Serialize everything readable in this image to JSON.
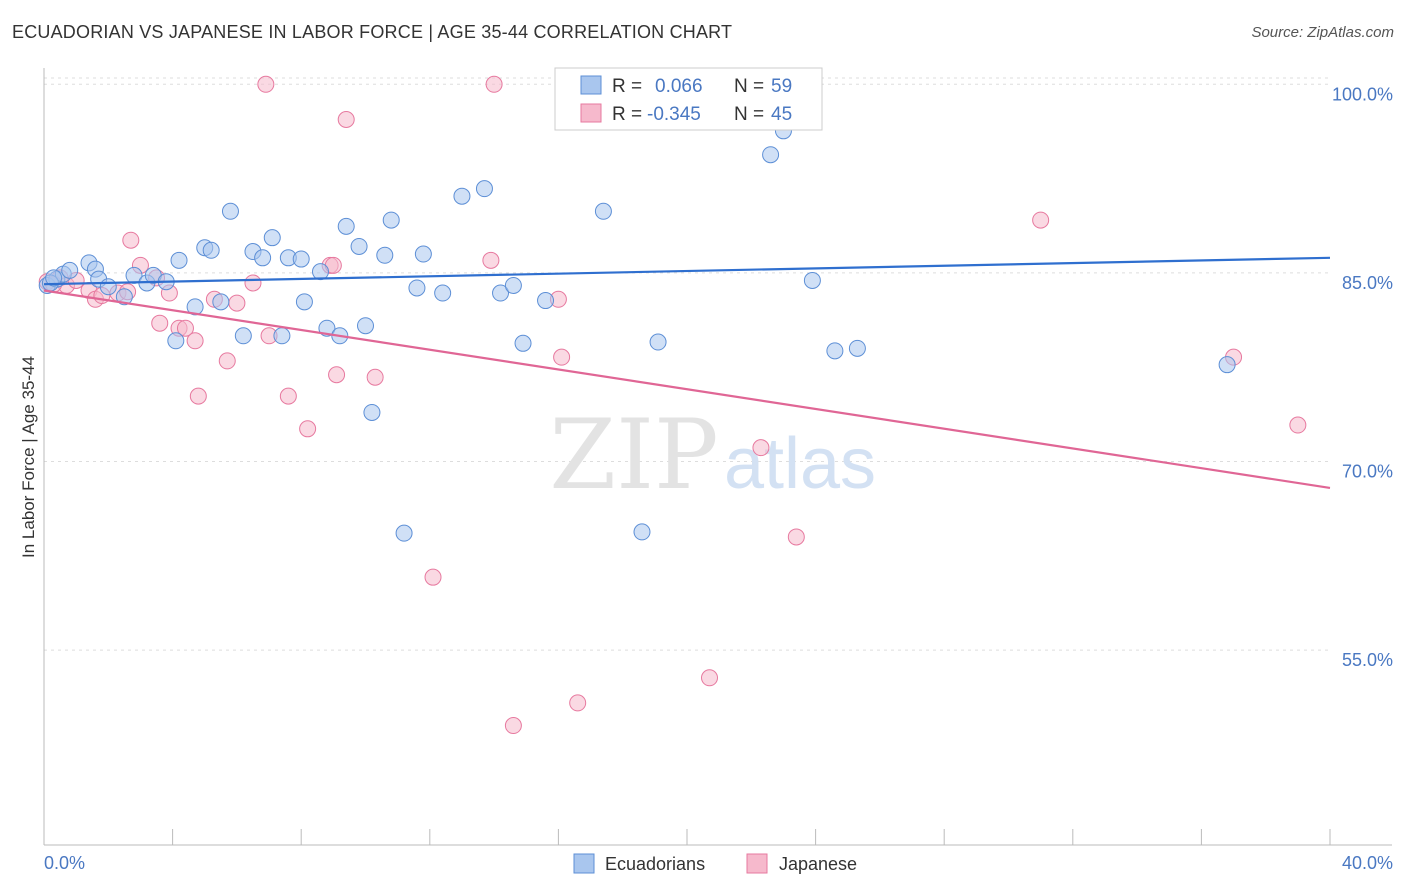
{
  "title": "ECUADORIAN VS JAPANESE IN LABOR FORCE | AGE 35-44 CORRELATION CHART",
  "source": "Source: ZipAtlas.com",
  "watermark": {
    "zip": "ZIP",
    "atlas": "atlas"
  },
  "colors": {
    "ecuadorians_fill": "#a9c6ee",
    "ecuadorians_stroke": "#5d8fd6",
    "ecuadorians_line": "#2f6fcf",
    "japanese_fill": "#f6b9cc",
    "japanese_stroke": "#e7799f",
    "japanese_line": "#e06695",
    "tick_label": "#4a78c2",
    "grid": "#dddddd"
  },
  "legend": {
    "rows": [
      {
        "r_label": "R =",
        "r_value": "0.066",
        "n_label": "N =",
        "n_value": "59"
      },
      {
        "r_label": "R =",
        "r_value": "-0.345",
        "n_label": "N =",
        "n_value": "45"
      }
    ]
  },
  "bottom_legend": [
    "Ecuadorians",
    "Japanese"
  ],
  "chart_data": {
    "type": "scatter",
    "title": "ECUADORIAN VS JAPANESE IN LABOR FORCE | AGE 35-44 CORRELATION CHART",
    "xlabel": "",
    "ylabel": "In Labor Force | Age 35-44",
    "xlim": [
      0,
      40
    ],
    "ylim": [
      39.5,
      100.5
    ],
    "x_tick_labels": [
      "0.0%",
      "40.0%"
    ],
    "y_ticks": [
      55,
      70,
      85,
      100
    ],
    "y_tick_labels": [
      "55.0%",
      "70.0%",
      "85.0%",
      "100.0%"
    ],
    "grid": true,
    "legend_position": "top-center",
    "series": [
      {
        "name": "Ecuadorians",
        "r": 0.066,
        "n": 59,
        "trend": {
          "x": [
            0,
            40
          ],
          "y": [
            84.1,
            86.2
          ]
        },
        "points": [
          [
            0.1,
            84.0
          ],
          [
            0.4,
            84.5
          ],
          [
            0.6,
            84.9
          ],
          [
            0.8,
            85.2
          ],
          [
            1.4,
            85.8
          ],
          [
            1.6,
            85.3
          ],
          [
            1.7,
            84.5
          ],
          [
            2.0,
            83.9
          ],
          [
            2.5,
            83.1
          ],
          [
            2.8,
            84.8
          ],
          [
            3.2,
            84.2
          ],
          [
            3.4,
            84.8
          ],
          [
            3.8,
            84.3
          ],
          [
            4.1,
            79.6
          ],
          [
            4.2,
            86.0
          ],
          [
            4.7,
            82.3
          ],
          [
            5.0,
            87.0
          ],
          [
            5.2,
            86.8
          ],
          [
            5.5,
            82.7
          ],
          [
            5.8,
            89.9
          ],
          [
            6.2,
            80.0
          ],
          [
            6.5,
            86.7
          ],
          [
            6.8,
            86.2
          ],
          [
            7.1,
            87.8
          ],
          [
            7.4,
            80.0
          ],
          [
            7.6,
            86.2
          ],
          [
            8.0,
            86.1
          ],
          [
            8.1,
            82.7
          ],
          [
            8.6,
            85.1
          ],
          [
            8.8,
            80.6
          ],
          [
            9.2,
            80.0
          ],
          [
            9.4,
            88.7
          ],
          [
            9.8,
            87.1
          ],
          [
            10.0,
            80.8
          ],
          [
            10.2,
            73.9
          ],
          [
            10.6,
            86.4
          ],
          [
            10.8,
            89.2
          ],
          [
            11.2,
            64.3
          ],
          [
            11.6,
            83.8
          ],
          [
            11.8,
            86.5
          ],
          [
            12.4,
            83.4
          ],
          [
            13.0,
            91.1
          ],
          [
            13.7,
            91.7
          ],
          [
            14.2,
            83.4
          ],
          [
            14.6,
            84.0
          ],
          [
            14.9,
            79.4
          ],
          [
            15.6,
            82.8
          ],
          [
            17.4,
            89.9
          ],
          [
            18.6,
            64.4
          ],
          [
            19.1,
            79.5
          ],
          [
            21.5,
            98.6
          ],
          [
            22.6,
            94.4
          ],
          [
            23.0,
            96.3
          ],
          [
            23.9,
            84.4
          ],
          [
            24.6,
            78.8
          ],
          [
            25.3,
            79.0
          ],
          [
            36.8,
            77.7
          ],
          [
            0.2,
            84.2
          ],
          [
            0.3,
            84.6
          ]
        ]
      },
      {
        "name": "Japanese",
        "r": -0.345,
        "n": 45,
        "trend": {
          "x": [
            0,
            40
          ],
          "y": [
            83.6,
            67.9
          ]
        },
        "points": [
          [
            0.1,
            84.3
          ],
          [
            0.5,
            84.6
          ],
          [
            0.7,
            84.0
          ],
          [
            1.0,
            84.4
          ],
          [
            1.4,
            83.6
          ],
          [
            1.6,
            82.9
          ],
          [
            1.8,
            83.2
          ],
          [
            2.3,
            83.4
          ],
          [
            2.6,
            83.5
          ],
          [
            2.7,
            87.6
          ],
          [
            3.0,
            85.6
          ],
          [
            3.5,
            84.6
          ],
          [
            3.6,
            81.0
          ],
          [
            3.9,
            83.4
          ],
          [
            4.2,
            80.6
          ],
          [
            4.4,
            80.6
          ],
          [
            4.7,
            79.6
          ],
          [
            4.8,
            75.2
          ],
          [
            5.3,
            82.9
          ],
          [
            5.7,
            78.0
          ],
          [
            6.0,
            82.6
          ],
          [
            6.5,
            84.2
          ],
          [
            6.9,
            100.0
          ],
          [
            7.0,
            80.0
          ],
          [
            7.6,
            75.2
          ],
          [
            8.2,
            72.6
          ],
          [
            8.9,
            85.6
          ],
          [
            9.0,
            85.6
          ],
          [
            9.1,
            76.9
          ],
          [
            9.4,
            97.2
          ],
          [
            10.3,
            76.7
          ],
          [
            12.1,
            60.8
          ],
          [
            13.9,
            86.0
          ],
          [
            14.0,
            100.0
          ],
          [
            14.6,
            49.0
          ],
          [
            16.0,
            82.9
          ],
          [
            16.1,
            78.3
          ],
          [
            16.6,
            50.8
          ],
          [
            20.7,
            52.8
          ],
          [
            22.3,
            71.1
          ],
          [
            23.4,
            64.0
          ],
          [
            31.0,
            89.2
          ],
          [
            37.0,
            78.3
          ],
          [
            39.0,
            72.9
          ],
          [
            0.3,
            84.1
          ]
        ]
      }
    ]
  }
}
